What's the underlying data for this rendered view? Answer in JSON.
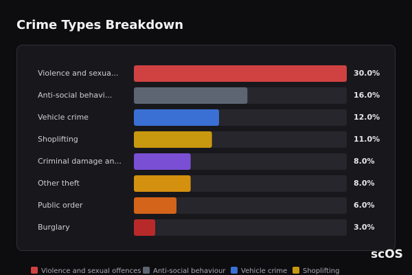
{
  "chart_data": {
    "type": "hbar",
    "title": "Crime Types Breakdown",
    "categories": [
      "Violence and sexua...",
      "Anti-social behavi...",
      "Vehicle crime",
      "Shoplifting",
      "Criminal damage an...",
      "Other theft",
      "Public order",
      "Burglary"
    ],
    "values": [
      30,
      16,
      12,
      11,
      8,
      8,
      6,
      3
    ],
    "value_labels": [
      "30.0%",
      "16.0%",
      "12.0%",
      "11.0%",
      "8.0%",
      "8.0%",
      "6.0%",
      "3.0%"
    ],
    "colors": [
      "#d04242",
      "#5d6572",
      "#3a70d4",
      "#c8980f",
      "#7a4fd4",
      "#d4900f",
      "#d4641a",
      "#b82a2a"
    ],
    "xlim": [
      0,
      30
    ],
    "legend": [
      {
        "name": "Violence and sexual offences",
        "color": "#d04242"
      },
      {
        "name": "Anti-social behaviour",
        "color": "#5d6572"
      },
      {
        "name": "Vehicle crime",
        "color": "#3a70d4"
      },
      {
        "name": "Shoplifting",
        "color": "#c8980f"
      }
    ],
    "watermark": "scOS"
  }
}
